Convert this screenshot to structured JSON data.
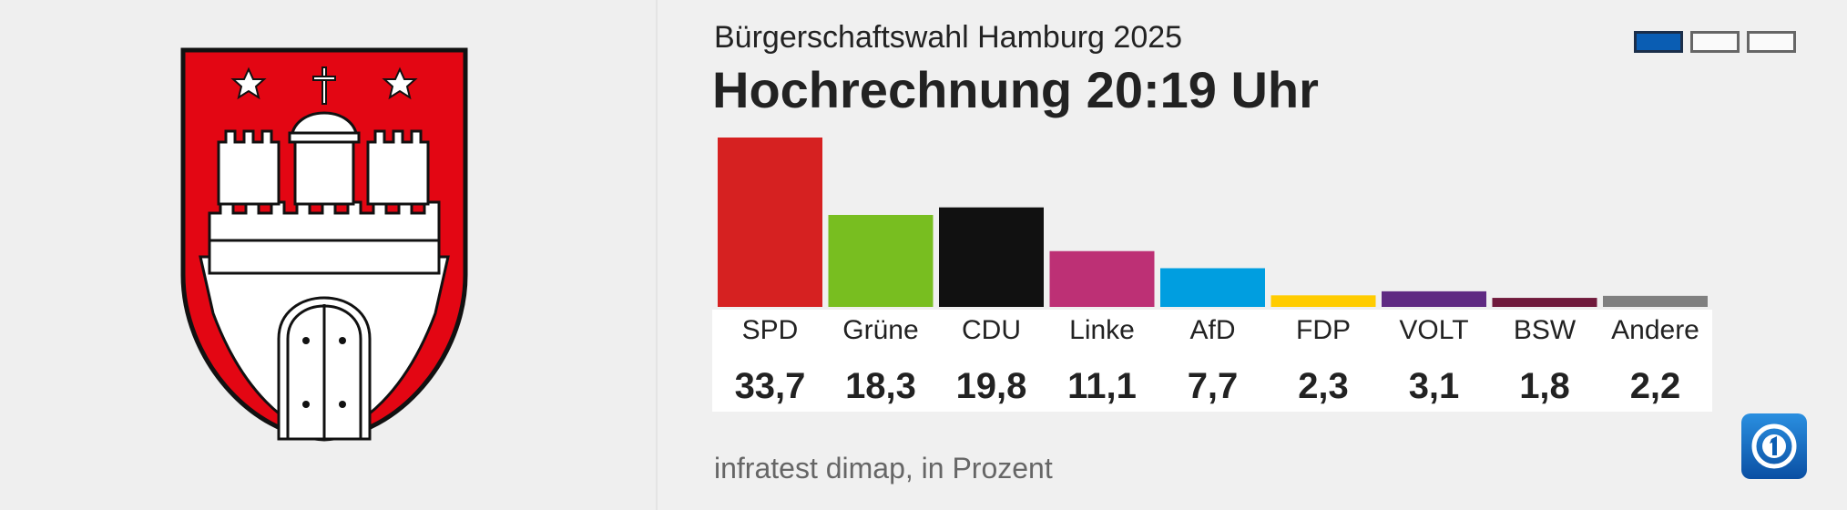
{
  "header": {
    "subtitle": "Bürgerschaftswahl Hamburg 2025",
    "title": "Hochrechnung 20:19 Uhr"
  },
  "pager": {
    "pages": 3,
    "active_index": 0
  },
  "source": "infratest dimap, in Prozent",
  "icons": {
    "coat_of_arms": "hamburg-coat-of-arms-icon",
    "logo": "ard-das-erste-logo-icon"
  },
  "chart_data": {
    "type": "bar",
    "title": "Hochrechnung 20:19 Uhr",
    "subtitle": "Bürgerschaftswahl Hamburg 2025",
    "unit": "Prozent",
    "ylim": [
      0,
      33.7
    ],
    "categories": [
      "SPD",
      "Grüne",
      "CDU",
      "Linke",
      "AfD",
      "FDP",
      "VOLT",
      "BSW",
      "Andere"
    ],
    "values": [
      33.7,
      18.3,
      19.8,
      11.1,
      7.7,
      2.3,
      3.1,
      1.8,
      2.2
    ],
    "value_labels": [
      "33,7",
      "18,3",
      "19,8",
      "11,1",
      "7,7",
      "2,3",
      "3,1",
      "1,8",
      "2,2"
    ],
    "colors": [
      "#d62121",
      "#78be20",
      "#111111",
      "#bd3075",
      "#009ee0",
      "#ffcc00",
      "#5f2a82",
      "#701a3c",
      "#808080"
    ]
  }
}
